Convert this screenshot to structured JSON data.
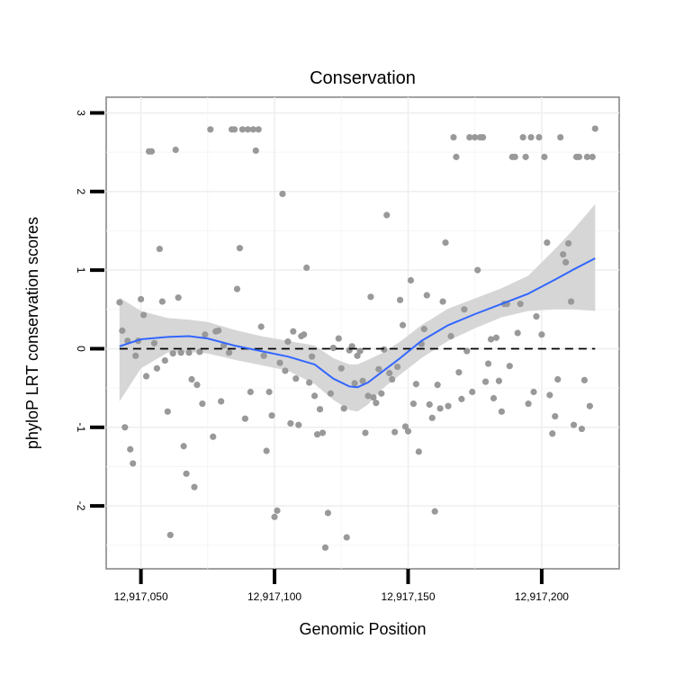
{
  "chart_data": {
    "type": "scatter",
    "title": "Conservation",
    "xlabel": "Genomic Position",
    "ylabel": "phyloP LRT conservation scores",
    "xlim": [
      12917037,
      12917229
    ],
    "ylim": [
      -2.8,
      3.2
    ],
    "xticks": [
      12917050,
      12917100,
      12917150,
      12917200
    ],
    "xtick_labels": [
      "12,917,050",
      "12,917,100",
      "12,917,150",
      "12,917,200"
    ],
    "yticks": [
      -2,
      -1,
      0,
      1,
      2,
      3
    ],
    "ytick_labels": [
      "-2",
      "-1",
      "0",
      "1",
      "2",
      "3"
    ],
    "grid": true,
    "reference_line": {
      "y": 0,
      "style": "dashed"
    },
    "point_color": "#999999",
    "smooth_color": "#3366ff",
    "band_color": "#d4d4d4",
    "points": [
      {
        "x": 12917042,
        "y": 0.59
      },
      {
        "x": 12917043,
        "y": 0.23
      },
      {
        "x": 12917044,
        "y": -1.0
      },
      {
        "x": 12917045,
        "y": 0.1
      },
      {
        "x": 12917046,
        "y": -1.28
      },
      {
        "x": 12917047,
        "y": -1.46
      },
      {
        "x": 12917048,
        "y": -0.09
      },
      {
        "x": 12917049,
        "y": 0.1
      },
      {
        "x": 12917050,
        "y": 0.63
      },
      {
        "x": 12917051,
        "y": 0.43
      },
      {
        "x": 12917052,
        "y": -0.35
      },
      {
        "x": 12917053,
        "y": 2.51
      },
      {
        "x": 12917054,
        "y": 2.51
      },
      {
        "x": 12917055,
        "y": 0.07
      },
      {
        "x": 12917056,
        "y": -0.25
      },
      {
        "x": 12917057,
        "y": 1.27
      },
      {
        "x": 12917058,
        "y": 0.6
      },
      {
        "x": 12917059,
        "y": -0.15
      },
      {
        "x": 12917060,
        "y": -0.8
      },
      {
        "x": 12917061,
        "y": -2.37
      },
      {
        "x": 12917062,
        "y": -0.06
      },
      {
        "x": 12917063,
        "y": 2.53
      },
      {
        "x": 12917064,
        "y": 0.65
      },
      {
        "x": 12917065,
        "y": -0.05
      },
      {
        "x": 12917066,
        "y": -1.24
      },
      {
        "x": 12917067,
        "y": -1.59
      },
      {
        "x": 12917068,
        "y": -0.05
      },
      {
        "x": 12917069,
        "y": -0.39
      },
      {
        "x": 12917070,
        "y": -1.76
      },
      {
        "x": 12917071,
        "y": -0.46
      },
      {
        "x": 12917072,
        "y": -0.04
      },
      {
        "x": 12917073,
        "y": -0.7
      },
      {
        "x": 12917074,
        "y": 0.18
      },
      {
        "x": 12917076,
        "y": 2.79
      },
      {
        "x": 12917077,
        "y": -1.12
      },
      {
        "x": 12917078,
        "y": 0.22
      },
      {
        "x": 12917079,
        "y": 0.23
      },
      {
        "x": 12917080,
        "y": -0.67
      },
      {
        "x": 12917081,
        "y": 0.04
      },
      {
        "x": 12917083,
        "y": -0.05
      },
      {
        "x": 12917084,
        "y": 2.79
      },
      {
        "x": 12917085,
        "y": 2.79
      },
      {
        "x": 12917086,
        "y": 0.76
      },
      {
        "x": 12917087,
        "y": 1.28
      },
      {
        "x": 12917088,
        "y": 2.79
      },
      {
        "x": 12917089,
        "y": -0.89
      },
      {
        "x": 12917090,
        "y": 2.79
      },
      {
        "x": 12917091,
        "y": -0.55
      },
      {
        "x": 12917092,
        "y": 2.79
      },
      {
        "x": 12917093,
        "y": 2.52
      },
      {
        "x": 12917094,
        "y": 2.79
      },
      {
        "x": 12917095,
        "y": 0.28
      },
      {
        "x": 12917096,
        "y": -0.09
      },
      {
        "x": 12917097,
        "y": -1.3
      },
      {
        "x": 12917098,
        "y": -0.55
      },
      {
        "x": 12917099,
        "y": -0.85
      },
      {
        "x": 12917100,
        "y": -2.14
      },
      {
        "x": 12917101,
        "y": -2.06
      },
      {
        "x": 12917102,
        "y": -0.18
      },
      {
        "x": 12917103,
        "y": 1.97
      },
      {
        "x": 12917104,
        "y": -0.28
      },
      {
        "x": 12917105,
        "y": 0.09
      },
      {
        "x": 12917106,
        "y": -0.95
      },
      {
        "x": 12917107,
        "y": 0.22
      },
      {
        "x": 12917108,
        "y": -0.38
      },
      {
        "x": 12917109,
        "y": -0.97
      },
      {
        "x": 12917110,
        "y": 0.16
      },
      {
        "x": 12917111,
        "y": 0.18
      },
      {
        "x": 12917112,
        "y": 1.03
      },
      {
        "x": 12917113,
        "y": -0.43
      },
      {
        "x": 12917114,
        "y": -0.1
      },
      {
        "x": 12917115,
        "y": -0.6
      },
      {
        "x": 12917116,
        "y": -1.09
      },
      {
        "x": 12917117,
        "y": -0.77
      },
      {
        "x": 12917118,
        "y": -1.07
      },
      {
        "x": 12917119,
        "y": -2.53
      },
      {
        "x": 12917120,
        "y": -2.09
      },
      {
        "x": 12917121,
        "y": -0.57
      },
      {
        "x": 12917122,
        "y": 0.01
      },
      {
        "x": 12917124,
        "y": 0.13
      },
      {
        "x": 12917125,
        "y": -0.25
      },
      {
        "x": 12917126,
        "y": -0.76
      },
      {
        "x": 12917127,
        "y": -2.4
      },
      {
        "x": 12917128,
        "y": -0.02
      },
      {
        "x": 12917129,
        "y": 0.03
      },
      {
        "x": 12917130,
        "y": -0.44
      },
      {
        "x": 12917131,
        "y": -0.09
      },
      {
        "x": 12917132,
        "y": -0.03
      },
      {
        "x": 12917133,
        "y": -0.41
      },
      {
        "x": 12917134,
        "y": -1.07
      },
      {
        "x": 12917135,
        "y": -0.6
      },
      {
        "x": 12917136,
        "y": 0.66
      },
      {
        "x": 12917137,
        "y": -0.62
      },
      {
        "x": 12917138,
        "y": -0.69
      },
      {
        "x": 12917139,
        "y": -0.26
      },
      {
        "x": 12917140,
        "y": -0.57
      },
      {
        "x": 12917141,
        "y": -0.01
      },
      {
        "x": 12917142,
        "y": 1.7
      },
      {
        "x": 12917143,
        "y": -0.31
      },
      {
        "x": 12917144,
        "y": -0.39
      },
      {
        "x": 12917145,
        "y": -1.06
      },
      {
        "x": 12917146,
        "y": -0.23
      },
      {
        "x": 12917147,
        "y": 0.62
      },
      {
        "x": 12917148,
        "y": 0.3
      },
      {
        "x": 12917149,
        "y": -0.99
      },
      {
        "x": 12917150,
        "y": -1.05
      },
      {
        "x": 12917151,
        "y": 0.87
      },
      {
        "x": 12917152,
        "y": -0.7
      },
      {
        "x": 12917153,
        "y": -0.45
      },
      {
        "x": 12917154,
        "y": -1.31
      },
      {
        "x": 12917155,
        "y": 0.06
      },
      {
        "x": 12917156,
        "y": 0.25
      },
      {
        "x": 12917157,
        "y": 0.68
      },
      {
        "x": 12917158,
        "y": -0.71
      },
      {
        "x": 12917159,
        "y": -0.88
      },
      {
        "x": 12917160,
        "y": -2.07
      },
      {
        "x": 12917161,
        "y": -0.46
      },
      {
        "x": 12917162,
        "y": -0.76
      },
      {
        "x": 12917163,
        "y": 0.6
      },
      {
        "x": 12917164,
        "y": 1.35
      },
      {
        "x": 12917165,
        "y": -0.73
      },
      {
        "x": 12917166,
        "y": 0.16
      },
      {
        "x": 12917167,
        "y": 2.69
      },
      {
        "x": 12917168,
        "y": 2.44
      },
      {
        "x": 12917169,
        "y": -0.3
      },
      {
        "x": 12917170,
        "y": -0.64
      },
      {
        "x": 12917171,
        "y": 0.5
      },
      {
        "x": 12917172,
        "y": -0.03
      },
      {
        "x": 12917173,
        "y": 2.69
      },
      {
        "x": 12917174,
        "y": -0.55
      },
      {
        "x": 12917175,
        "y": 2.69
      },
      {
        "x": 12917176,
        "y": 1.0
      },
      {
        "x": 12917177,
        "y": 2.69
      },
      {
        "x": 12917178,
        "y": 2.69
      },
      {
        "x": 12917179,
        "y": -0.42
      },
      {
        "x": 12917180,
        "y": -0.19
      },
      {
        "x": 12917181,
        "y": 0.12
      },
      {
        "x": 12917182,
        "y": -0.63
      },
      {
        "x": 12917183,
        "y": 0.14
      },
      {
        "x": 12917184,
        "y": -0.41
      },
      {
        "x": 12917185,
        "y": -0.8
      },
      {
        "x": 12917186,
        "y": 0.57
      },
      {
        "x": 12917187,
        "y": 0.57
      },
      {
        "x": 12917188,
        "y": -0.22
      },
      {
        "x": 12917189,
        "y": 2.44
      },
      {
        "x": 12917190,
        "y": 2.44
      },
      {
        "x": 12917191,
        "y": 0.2
      },
      {
        "x": 12917192,
        "y": 0.57
      },
      {
        "x": 12917193,
        "y": 2.69
      },
      {
        "x": 12917194,
        "y": 2.44
      },
      {
        "x": 12917195,
        "y": -0.7
      },
      {
        "x": 12917196,
        "y": 2.69
      },
      {
        "x": 12917197,
        "y": -0.55
      },
      {
        "x": 12917198,
        "y": 0.41
      },
      {
        "x": 12917199,
        "y": 2.69
      },
      {
        "x": 12917200,
        "y": 0.18
      },
      {
        "x": 12917201,
        "y": 2.44
      },
      {
        "x": 12917202,
        "y": 1.35
      },
      {
        "x": 12917203,
        "y": -0.59
      },
      {
        "x": 12917204,
        "y": -1.08
      },
      {
        "x": 12917205,
        "y": -0.86
      },
      {
        "x": 12917206,
        "y": -0.39
      },
      {
        "x": 12917207,
        "y": 2.69
      },
      {
        "x": 12917208,
        "y": 1.2
      },
      {
        "x": 12917209,
        "y": 1.1
      },
      {
        "x": 12917210,
        "y": 1.34
      },
      {
        "x": 12917211,
        "y": 0.6
      },
      {
        "x": 12917212,
        "y": -0.97
      },
      {
        "x": 12917213,
        "y": 2.44
      },
      {
        "x": 12917214,
        "y": 2.44
      },
      {
        "x": 12917215,
        "y": -1.02
      },
      {
        "x": 12917216,
        "y": -0.4
      },
      {
        "x": 12917217,
        "y": 2.44
      },
      {
        "x": 12917218,
        "y": -0.73
      },
      {
        "x": 12917219,
        "y": 2.44
      },
      {
        "x": 12917220,
        "y": 2.8
      }
    ],
    "smooth_line": [
      {
        "x": 12917042,
        "y": 0.03
      },
      {
        "x": 12917050,
        "y": 0.12
      },
      {
        "x": 12917060,
        "y": 0.15
      },
      {
        "x": 12917068,
        "y": 0.16
      },
      {
        "x": 12917075,
        "y": 0.13
      },
      {
        "x": 12917085,
        "y": 0.04
      },
      {
        "x": 12917095,
        "y": -0.03
      },
      {
        "x": 12917105,
        "y": -0.1
      },
      {
        "x": 12917115,
        "y": -0.2
      },
      {
        "x": 12917122,
        "y": -0.38
      },
      {
        "x": 12917128,
        "y": -0.48
      },
      {
        "x": 12917131,
        "y": -0.49
      },
      {
        "x": 12917135,
        "y": -0.43
      },
      {
        "x": 12917140,
        "y": -0.3
      },
      {
        "x": 12917147,
        "y": -0.12
      },
      {
        "x": 12917155,
        "y": 0.1
      },
      {
        "x": 12917165,
        "y": 0.3
      },
      {
        "x": 12917175,
        "y": 0.44
      },
      {
        "x": 12917185,
        "y": 0.57
      },
      {
        "x": 12917195,
        "y": 0.7
      },
      {
        "x": 12917205,
        "y": 0.88
      },
      {
        "x": 12917212,
        "y": 1.01
      },
      {
        "x": 12917220,
        "y": 1.15
      }
    ],
    "confidence_band": [
      {
        "x": 12917042,
        "lower": -0.67,
        "upper": 0.65
      },
      {
        "x": 12917050,
        "lower": -0.25,
        "upper": 0.48
      },
      {
        "x": 12917060,
        "lower": -0.05,
        "upper": 0.39
      },
      {
        "x": 12917068,
        "lower": -0.04,
        "upper": 0.37
      },
      {
        "x": 12917075,
        "lower": -0.06,
        "upper": 0.34
      },
      {
        "x": 12917085,
        "lower": -0.14,
        "upper": 0.24
      },
      {
        "x": 12917095,
        "lower": -0.21,
        "upper": 0.16
      },
      {
        "x": 12917105,
        "lower": -0.28,
        "upper": 0.1
      },
      {
        "x": 12917115,
        "lower": -0.45,
        "upper": 0.04
      },
      {
        "x": 12917122,
        "lower": -0.65,
        "upper": -0.12
      },
      {
        "x": 12917128,
        "lower": -0.78,
        "upper": -0.2
      },
      {
        "x": 12917131,
        "lower": -0.8,
        "upper": -0.2
      },
      {
        "x": 12917135,
        "lower": -0.71,
        "upper": -0.14
      },
      {
        "x": 12917140,
        "lower": -0.52,
        "upper": -0.06
      },
      {
        "x": 12917147,
        "lower": -0.33,
        "upper": 0.09
      },
      {
        "x": 12917155,
        "lower": -0.12,
        "upper": 0.3
      },
      {
        "x": 12917165,
        "lower": 0.1,
        "upper": 0.51
      },
      {
        "x": 12917175,
        "lower": 0.26,
        "upper": 0.64
      },
      {
        "x": 12917185,
        "lower": 0.4,
        "upper": 0.77
      },
      {
        "x": 12917195,
        "lower": 0.48,
        "upper": 0.93
      },
      {
        "x": 12917205,
        "lower": 0.5,
        "upper": 1.27
      },
      {
        "x": 12917212,
        "lower": 0.5,
        "upper": 1.52
      },
      {
        "x": 12917220,
        "lower": 0.48,
        "upper": 1.84
      }
    ]
  }
}
